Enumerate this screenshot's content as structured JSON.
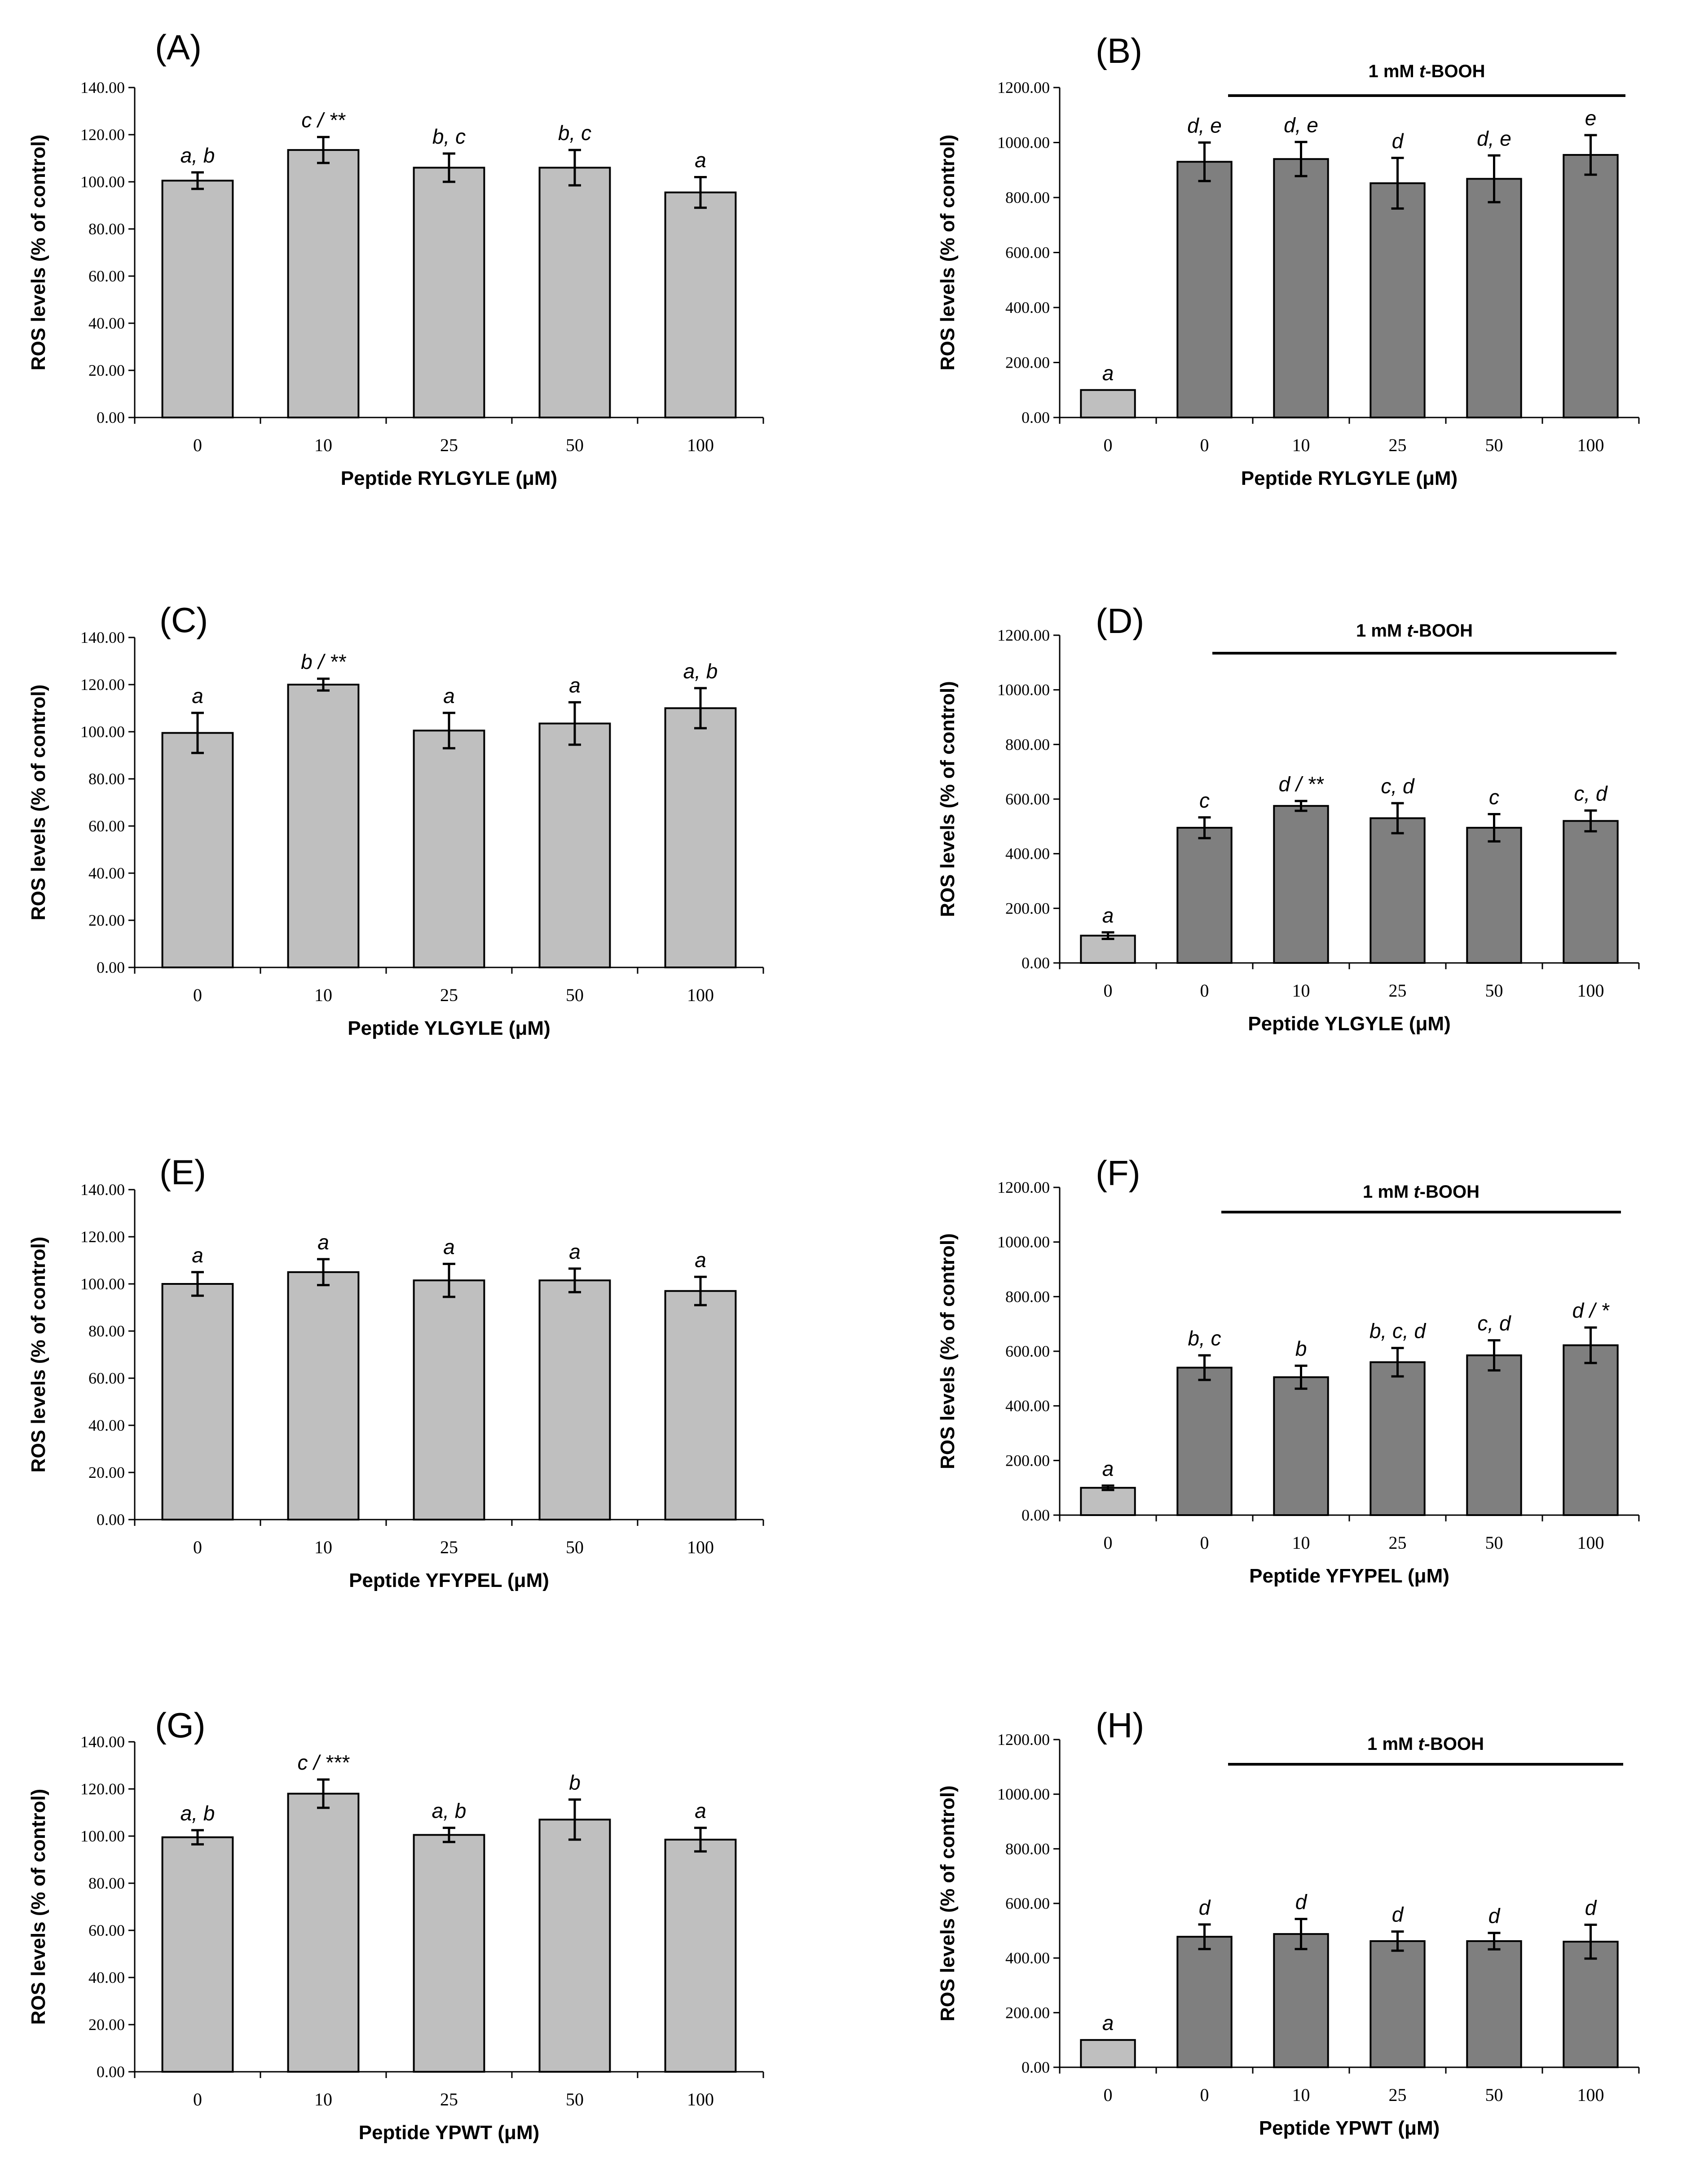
{
  "colors": {
    "light_bar": "#bfbfbf",
    "dark_bar": "#7f7f7f",
    "outline": "#000000"
  },
  "chart_data": [
    {
      "id": "A",
      "panel_label": "(A)",
      "type": "bar",
      "categories": [
        "0",
        "10",
        "25",
        "50",
        "100"
      ],
      "values": [
        100.5,
        113.5,
        106.0,
        106.0,
        95.5
      ],
      "errors": [
        3.5,
        5.5,
        6.0,
        7.5,
        6.5
      ],
      "sig": [
        "a, b",
        "c / **",
        "b, c",
        "b, c",
        "a"
      ],
      "bar_shades": [
        "light",
        "light",
        "light",
        "light",
        "light"
      ],
      "ylim": [
        0,
        140
      ],
      "yticks": [
        0,
        20,
        40,
        60,
        80,
        100,
        120,
        140
      ],
      "ytick_labels": [
        "0.00",
        "20.00",
        "40.00",
        "60.00",
        "80.00",
        "100.00",
        "120.00",
        "140.00"
      ],
      "ylabel": "ROS levels (% of control)",
      "xlabel": "Peptide RYLGYLE (μM)",
      "treatment": null
    },
    {
      "id": "B",
      "panel_label": "(B)",
      "type": "bar",
      "categories": [
        "0",
        "0",
        "10",
        "25",
        "50",
        "100"
      ],
      "values": [
        100,
        930,
        940,
        852,
        868,
        955
      ],
      "errors": [
        0,
        70,
        62,
        92,
        85,
        72
      ],
      "sig": [
        "a",
        "d, e",
        "d, e",
        "d",
        "d, e",
        "e"
      ],
      "bar_shades": [
        "light",
        "dark",
        "dark",
        "dark",
        "dark",
        "dark"
      ],
      "ylim": [
        0,
        1200
      ],
      "yticks": [
        0,
        200,
        400,
        600,
        800,
        1000,
        1200
      ],
      "ytick_labels": [
        "0.00",
        "200.00",
        "400.00",
        "600.00",
        "800.00",
        "1000.00",
        "1200.00"
      ],
      "ylabel": "ROS levels (% of control)",
      "xlabel": "Peptide RYLGYLE (μM)",
      "treatment": {
        "prefix": "1 mM ",
        "agent": "t",
        "suffix": "-BOOH"
      }
    },
    {
      "id": "C",
      "panel_label": "(C)",
      "type": "bar",
      "categories": [
        "0",
        "10",
        "25",
        "50",
        "100"
      ],
      "values": [
        99.5,
        120.0,
        100.5,
        103.5,
        110.0
      ],
      "errors": [
        8.5,
        2.5,
        7.5,
        9.0,
        8.5
      ],
      "sig": [
        "a",
        "b / **",
        "a",
        "a",
        "a, b"
      ],
      "bar_shades": [
        "light",
        "light",
        "light",
        "light",
        "light"
      ],
      "ylim": [
        0,
        140
      ],
      "yticks": [
        0,
        20,
        40,
        60,
        80,
        100,
        120,
        140
      ],
      "ytick_labels": [
        "0.00",
        "20.00",
        "40.00",
        "60.00",
        "80.00",
        "100.00",
        "120.00",
        "140.00"
      ],
      "ylabel": "ROS levels (% of control)",
      "xlabel": "Peptide YLGYLE (μM)",
      "treatment": null
    },
    {
      "id": "D",
      "panel_label": "(D)",
      "type": "bar",
      "categories": [
        "0",
        "0",
        "10",
        "25",
        "50",
        "100"
      ],
      "values": [
        100,
        495,
        575,
        530,
        495,
        520
      ],
      "errors": [
        12,
        38,
        18,
        55,
        50,
        38
      ],
      "sig": [
        "a",
        "c",
        "d / **",
        "c, d",
        "c",
        "c, d"
      ],
      "bar_shades": [
        "light",
        "dark",
        "dark",
        "dark",
        "dark",
        "dark"
      ],
      "ylim": [
        0,
        1200
      ],
      "yticks": [
        0,
        200,
        400,
        600,
        800,
        1000,
        1200
      ],
      "ytick_labels": [
        "0.00",
        "200.00",
        "400.00",
        "600.00",
        "800.00",
        "1000.00",
        "1200.00"
      ],
      "ylabel": "ROS levels (% of control)",
      "xlabel": "Peptide YLGYLE (μM)",
      "treatment": {
        "prefix": "1 mM ",
        "agent": "t",
        "suffix": "-BOOH"
      }
    },
    {
      "id": "E",
      "panel_label": "(E)",
      "type": "bar",
      "categories": [
        "0",
        "10",
        "25",
        "50",
        "100"
      ],
      "values": [
        100.0,
        105.0,
        101.5,
        101.5,
        97.0
      ],
      "errors": [
        5.0,
        5.5,
        7.0,
        5.0,
        6.0
      ],
      "sig": [
        "a",
        "a",
        "a",
        "a",
        "a"
      ],
      "bar_shades": [
        "light",
        "light",
        "light",
        "light",
        "light"
      ],
      "ylim": [
        0,
        140
      ],
      "yticks": [
        0,
        20,
        40,
        60,
        80,
        100,
        120,
        140
      ],
      "ytick_labels": [
        "0.00",
        "20.00",
        "40.00",
        "60.00",
        "80.00",
        "100.00",
        "120.00",
        "140.00"
      ],
      "ylabel": "ROS levels (% of control)",
      "xlabel": "Peptide YFYPEL (μM)",
      "treatment": null
    },
    {
      "id": "F",
      "panel_label": "(F)",
      "type": "bar",
      "categories": [
        "0",
        "0",
        "10",
        "25",
        "50",
        "100"
      ],
      "values": [
        100,
        540,
        505,
        560,
        585,
        622
      ],
      "errors": [
        8,
        45,
        42,
        52,
        55,
        65
      ],
      "sig": [
        "a",
        "b, c",
        "b",
        "b, c, d",
        "c, d",
        "d / *"
      ],
      "bar_shades": [
        "light",
        "dark",
        "dark",
        "dark",
        "dark",
        "dark"
      ],
      "ylim": [
        0,
        1200
      ],
      "yticks": [
        0,
        200,
        400,
        600,
        800,
        1000,
        1200
      ],
      "ytick_labels": [
        "0.00",
        "200.00",
        "400.00",
        "600.00",
        "800.00",
        "1000.00",
        "1200.00"
      ],
      "ylabel": "ROS levels (% of control)",
      "xlabel": "Peptide YFYPEL (μM)",
      "treatment": {
        "prefix": "1 mM ",
        "agent": "t",
        "suffix": "-BOOH"
      }
    },
    {
      "id": "G",
      "panel_label": "(G)",
      "type": "bar",
      "categories": [
        "0",
        "10",
        "25",
        "50",
        "100"
      ],
      "values": [
        99.5,
        118.0,
        100.5,
        107.0,
        98.5
      ],
      "errors": [
        3.0,
        6.0,
        3.0,
        8.5,
        5.0
      ],
      "sig": [
        "a, b",
        "c / ***",
        "a, b",
        "b",
        "a"
      ],
      "bar_shades": [
        "light",
        "light",
        "light",
        "light",
        "light"
      ],
      "ylim": [
        0,
        140
      ],
      "yticks": [
        0,
        20,
        40,
        60,
        80,
        100,
        120,
        140
      ],
      "ytick_labels": [
        "0.00",
        "20.00",
        "40.00",
        "60.00",
        "80.00",
        "100.00",
        "120.00",
        "140.00"
      ],
      "ylabel": "ROS levels (% of control)",
      "xlabel": "Peptide YPWT (μM)",
      "treatment": null
    },
    {
      "id": "H",
      "panel_label": "(H)",
      "type": "bar",
      "categories": [
        "0",
        "0",
        "10",
        "25",
        "50",
        "100"
      ],
      "values": [
        100,
        478,
        488,
        462,
        462,
        460
      ],
      "errors": [
        0,
        45,
        55,
        35,
        30,
        62
      ],
      "sig": [
        "a",
        "d",
        "d",
        "d",
        "d",
        "d"
      ],
      "bar_shades": [
        "light",
        "dark",
        "dark",
        "dark",
        "dark",
        "dark"
      ],
      "ylim": [
        0,
        1200
      ],
      "yticks": [
        0,
        200,
        400,
        600,
        800,
        1000,
        1200
      ],
      "ytick_labels": [
        "0.00",
        "200.00",
        "400.00",
        "600.00",
        "800.00",
        "1000.00",
        "1200.00"
      ],
      "ylabel": "ROS levels (% of control)",
      "xlabel": "Peptide YPWT (μM)",
      "treatment": {
        "prefix": "1 mM ",
        "agent": "t",
        "suffix": "-BOOH"
      }
    }
  ]
}
